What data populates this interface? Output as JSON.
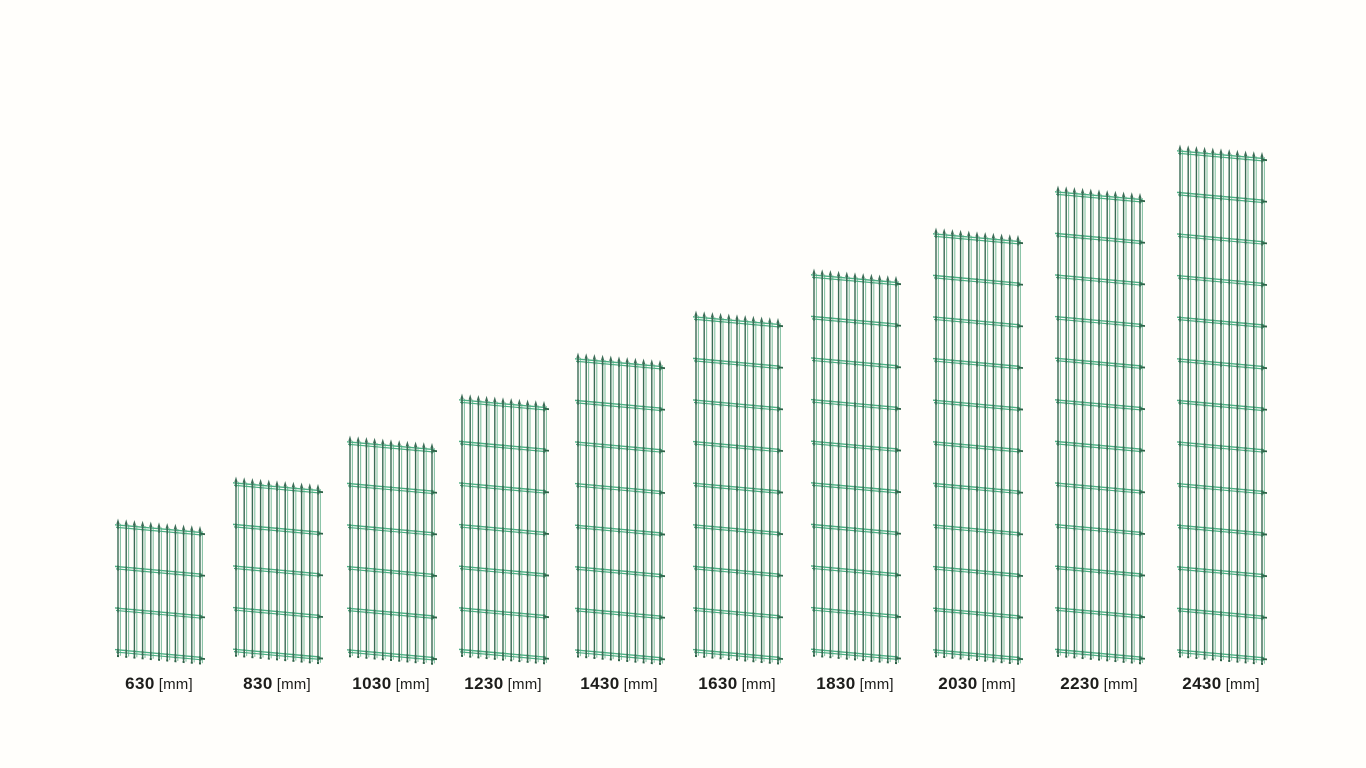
{
  "diagram_title": "",
  "panels": [
    {
      "value": "630",
      "unit": "[mm]",
      "height_mm": 630
    },
    {
      "value": "830",
      "unit": "[mm]",
      "height_mm": 830
    },
    {
      "value": "1030",
      "unit": "[mm]",
      "height_mm": 1030
    },
    {
      "value": "1230",
      "unit": "[mm]",
      "height_mm": 1230
    },
    {
      "value": "1430",
      "unit": "[mm]",
      "height_mm": 1430
    },
    {
      "value": "1630",
      "unit": "[mm]",
      "height_mm": 1630
    },
    {
      "value": "1830",
      "unit": "[mm]",
      "height_mm": 1830
    },
    {
      "value": "2030",
      "unit": "[mm]",
      "height_mm": 2030
    },
    {
      "value": "2230",
      "unit": "[mm]",
      "height_mm": 2230
    },
    {
      "value": "2430",
      "unit": "[mm]",
      "height_mm": 2430
    }
  ],
  "colors": {
    "background": "#fffefb",
    "wire_dark": "#3a6b55",
    "wire_back": "#86c2a3",
    "rail_light": "#4cb084",
    "knot_dark": "#2d6247",
    "label_text": "#1d1d1b"
  }
}
